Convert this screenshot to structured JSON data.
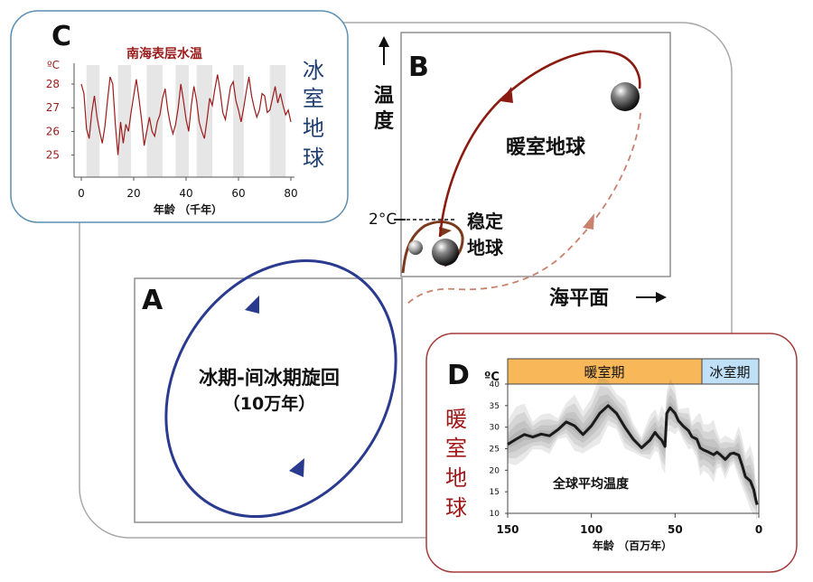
{
  "panel_c": {
    "letter": "C",
    "chart_title": "南海表层水温",
    "unit": "ºC",
    "y_ticks": [
      "28",
      "27",
      "26",
      "25"
    ],
    "x_ticks": [
      "0",
      "20",
      "40",
      "60",
      "80"
    ],
    "x_label": "年龄 （千年）",
    "side_label": [
      "冰",
      "室",
      "地",
      "球"
    ],
    "colors": {
      "line": "#9b1c1c",
      "side_label": "#1f3f73",
      "band": "#e6e6e6"
    }
  },
  "panel_b": {
    "letter": "B",
    "y_axis_label": [
      "温",
      "度"
    ],
    "x_axis_label": "海平面",
    "tick_label": "2°C",
    "greenhouse_label": "暖室地球",
    "stable_label": [
      "稳定",
      "地球"
    ],
    "colors": {
      "red_path": "#8b1a10",
      "brown_loop": "#7a3a1e",
      "dashed": "#c9826e"
    }
  },
  "panel_a": {
    "letter": "A",
    "title": "冰期-间冰期旋回",
    "subtitle": "（10万年）",
    "colors": {
      "loop": "#2a3a8f"
    }
  },
  "panel_d": {
    "letter": "D",
    "unit": "ºC",
    "warm_period": "暖室期",
    "ice_period": "冰室期",
    "y_ticks": [
      "40",
      "35",
      "30",
      "25",
      "20",
      "15",
      "10"
    ],
    "x_ticks": [
      "150",
      "100",
      "50",
      "0"
    ],
    "x_label": "年龄 （百万年）",
    "curve_label": "全球平均温度",
    "side_label": [
      "暖",
      "室",
      "地",
      "球"
    ],
    "colors": {
      "warm_bar": "#f8b85a",
      "ice_bar": "#bfe0f7",
      "side_label": "#a01818"
    }
  },
  "chart_data": [
    {
      "type": "line",
      "title": "南海表层水温",
      "xlabel": "年龄 （千年）",
      "ylabel": "ºC",
      "xlim": [
        0,
        80
      ],
      "ylim": [
        24.3,
        28.8
      ],
      "x": [
        0,
        1,
        2,
        3,
        4,
        5,
        6,
        7,
        8,
        9,
        10,
        11,
        12,
        13,
        14,
        15,
        16,
        17,
        18,
        19,
        20,
        21,
        22,
        23,
        24,
        25,
        26,
        27,
        28,
        29,
        30,
        31,
        32,
        33,
        34,
        35,
        36,
        37,
        38,
        39,
        40,
        41,
        42,
        43,
        44,
        45,
        46,
        47,
        48,
        49,
        50,
        51,
        52,
        53,
        54,
        55,
        56,
        57,
        58,
        59,
        60,
        61,
        62,
        63,
        64,
        65,
        66,
        67,
        68,
        69,
        70,
        71,
        72,
        73,
        74,
        75,
        76,
        77,
        78,
        79,
        80
      ],
      "values": [
        28,
        27.6,
        26.1,
        25.7,
        26.8,
        27.5,
        26.6,
        26.0,
        25.5,
        26.2,
        27.3,
        28.3,
        28.0,
        26.3,
        25.0,
        26.4,
        25.5,
        26.3,
        26.0,
        26.8,
        27.5,
        28.2,
        27.4,
        26.5,
        25.4,
        26.0,
        26.6,
        26.0,
        25.8,
        26.4,
        26.7,
        27.4,
        27.8,
        26.9,
        26.3,
        25.9,
        26.3,
        27.0,
        28.0,
        27.3,
        26.5,
        26.0,
        27.1,
        27.9,
        27.3,
        26.4,
        26.0,
        25.7,
        26.5,
        27.4,
        27.1,
        27.8,
        28.4,
        27.7,
        26.8,
        26.5,
        27.2,
        27.9,
        28.1,
        27.3,
        26.9,
        26.4,
        27.0,
        27.7,
        28.3,
        27.5,
        27.0,
        26.6,
        26.9,
        27.6,
        27.5,
        26.8,
        26.9,
        27.4,
        27.9,
        27.2,
        27.6,
        27.1,
        26.7,
        26.9,
        26.4
      ],
      "shaded_intervals": [
        [
          2,
          7
        ],
        [
          14,
          19
        ],
        [
          25,
          31
        ],
        [
          36,
          41
        ],
        [
          44,
          50
        ],
        [
          58,
          62
        ],
        [
          72,
          78
        ]
      ]
    },
    {
      "type": "line",
      "title": "",
      "series": [
        {
          "name": "全球平均温度"
        }
      ],
      "xlabel": "年龄 （百万年）",
      "ylabel": "ºC",
      "xlim": [
        150,
        0
      ],
      "ylim": [
        10,
        40
      ],
      "x": [
        150,
        145,
        140,
        135,
        130,
        125,
        120,
        115,
        110,
        105,
        100,
        95,
        90,
        85,
        80,
        75,
        70,
        65,
        62,
        60,
        58,
        56,
        55,
        53,
        50,
        48,
        45,
        42,
        40,
        37,
        35,
        33,
        30,
        27,
        25,
        23,
        20,
        17,
        15,
        12,
        10,
        8,
        5,
        3,
        2,
        1
      ],
      "values": [
        26,
        27.2,
        28.3,
        27.7,
        28.4,
        28,
        29.4,
        31.2,
        30.3,
        28.3,
        30.3,
        33.2,
        35,
        33.2,
        30,
        27.2,
        25.2,
        27,
        28.8,
        27.8,
        27,
        25.5,
        33.2,
        34.5,
        33.2,
        31.5,
        30.2,
        29.2,
        27.8,
        27.2,
        25.2,
        24.7,
        24.2,
        23.6,
        24.2,
        23.6,
        22.5,
        23.8,
        24,
        23.5,
        21.2,
        18.5,
        17.5,
        15.5,
        13.5,
        12
      ],
      "periods": [
        {
          "name": "暖室期",
          "from": 150,
          "to": 34
        },
        {
          "name": "冰室期",
          "to": 0
        }
      ]
    }
  ]
}
